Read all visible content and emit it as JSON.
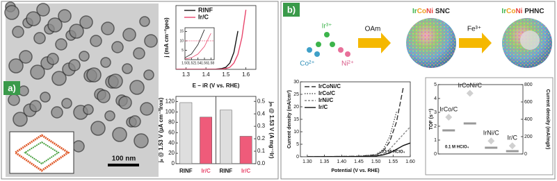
{
  "panel_labels": [
    "a)",
    "b)"
  ],
  "scale_bar": "100 nm",
  "scheme": {
    "ions": [
      "Ir³⁺",
      "Co²⁺",
      "Ni²⁺"
    ],
    "reagents": [
      "OAm",
      "Fe³⁺"
    ],
    "products": [
      {
        "parts": [
          "Ir",
          "Co",
          "Ni",
          " SNC"
        ]
      },
      {
        "parts": [
          "Ir",
          "Co",
          "Ni",
          " PHNC"
        ]
      }
    ],
    "part_colors": [
      "#3cb44b",
      "#f0a020",
      "#e8413c",
      "#222222"
    ]
  },
  "chart_data": [
    {
      "type": "line",
      "xlabel": "E − iR (V vs. RHE)",
      "ylabel": "j (mA cm⁻²geo)",
      "x": [
        1.25,
        1.4,
        1.45,
        1.48,
        1.5,
        1.52,
        1.54,
        1.56,
        1.58,
        1.6
      ],
      "series": [
        {
          "name": "RINF",
          "color": "#111111",
          "values": [
            0,
            0,
            0.1,
            0.4,
            1,
            3,
            8,
            18,
            null,
            null
          ]
        },
        {
          "name": "Ir/C",
          "color": "#e8456b",
          "values": [
            0,
            0,
            0,
            0.1,
            0.4,
            1,
            3,
            7,
            15,
            28
          ]
        }
      ],
      "xlim": [
        1.25,
        1.65
      ],
      "ylim": [
        0,
        30
      ],
      "xticks": [
        1.3,
        1.4,
        1.5,
        1.6
      ],
      "legend": "upper left"
    },
    {
      "type": "line",
      "x": [
        1.5,
        1.52,
        1.54,
        1.56,
        1.58
      ],
      "series": [
        {
          "color": "#111111",
          "values": [
            1,
            3,
            8,
            16,
            null
          ]
        },
        {
          "color": "#e8456b",
          "values": [
            0.4,
            1,
            3,
            7,
            14
          ]
        }
      ],
      "xlim": [
        1.5,
        1.59
      ],
      "ylim": [
        0,
        17
      ],
      "xticks": [
        {
          "value": 1.5,
          "label": "1.50"
        },
        1.52,
        1.54,
        1.56,
        1.58
      ],
      "yticks": [
        5,
        10,
        15
      ],
      "reference_y": 10,
      "reference_color": "#e8456b"
    },
    {
      "type": "bar",
      "categories": [
        "RINF",
        "Ir/C",
        "RINF",
        "Ir/C"
      ],
      "colors": [
        "#dedede",
        "#ef5b7a",
        "#dedede",
        "#ef5b7a"
      ],
      "label_colors": [
        "#111111",
        "#e8456b",
        "#111111",
        "#e8456b"
      ],
      "ylabel": "jₛ @ 1.53 V (µA cm⁻²Irox)",
      "y2label": "jₘ @ 1.53 V (A mg⁻¹Ir)",
      "series": [
        {
          "values": [
            118,
            90,
            null,
            null
          ]
        },
        {
          "values": [
            null,
            null,
            0.43,
            0.22
          ],
          "axis": "y2"
        }
      ],
      "ylim": [
        0,
        130
      ],
      "yticks": [
        0,
        20,
        40,
        60,
        80,
        100,
        120
      ],
      "y2lim": [
        0,
        0.54
      ],
      "y2ticks": [
        {
          "value": 0,
          "label": "0.0"
        },
        0.1,
        0.2,
        0.3,
        0.4,
        0.5
      ]
    },
    {
      "type": "line",
      "xlabel": "Potential (V vs. RHE)",
      "ylabel": "Current density (mA/cm²)",
      "annotation": "0.1 M HClO₄",
      "x": [
        1.3,
        1.45,
        1.5,
        1.52,
        1.54,
        1.56,
        1.58,
        1.6
      ],
      "series": [
        {
          "name": "IrCoNi/C",
          "color": "#333333",
          "style": "long-dash",
          "values": [
            0,
            0.2,
            0.8,
            2,
            6,
            14,
            28,
            null
          ]
        },
        {
          "name": "IrCo/C",
          "color": "#555555",
          "style": "dotted",
          "values": [
            0,
            0.2,
            0.9,
            2.6,
            8,
            18,
            null,
            null
          ]
        },
        {
          "name": "IrNi/C",
          "color": "#888888",
          "style": "dash",
          "values": [
            0,
            0.1,
            0.5,
            1,
            3,
            6,
            9,
            12
          ]
        },
        {
          "name": "Ir/C",
          "color": "#111111",
          "style": "solid",
          "values": [
            0,
            0.1,
            0.3,
            0.7,
            1.5,
            3,
            4.5,
            5.5
          ]
        }
      ],
      "xlim": [
        1.28,
        1.6
      ],
      "ylim": [
        0,
        30
      ],
      "xticks": [
        {
          "value": 1.3,
          "label": "1.30"
        },
        1.35,
        {
          "value": 1.4,
          "label": "1.40"
        },
        1.45,
        {
          "value": 1.5,
          "label": "1.50"
        },
        1.55,
        {
          "value": 1.6,
          "label": "1.60"
        }
      ],
      "yticks": [
        0,
        5,
        10,
        15,
        20,
        25,
        30
      ],
      "legend": "upper left"
    },
    {
      "type": "dot",
      "categories": [
        "IrCo/C",
        "IrCoNi/C",
        "IrNi/C",
        "Ir/C"
      ],
      "annotation": "0.1 M HClO₄",
      "ylabel": "TOF (s⁻¹)",
      "y2label": "Current density (mA/mgIr)",
      "series": [
        {
          "marker": "dash",
          "color": "#999999",
          "values": [
            1.7,
            2.2,
            0.45,
            0.2
          ]
        },
        {
          "marker": "diamond",
          "color": "#d0d0d0",
          "axis": "y2",
          "values": [
            424,
            700,
            150,
            94
          ]
        }
      ],
      "ylim": [
        0,
        5
      ],
      "yticks": [
        0,
        1,
        2,
        3,
        4,
        5
      ],
      "y2lim": [
        0,
        800
      ],
      "y2ticks": [
        0,
        200,
        400,
        600,
        800
      ]
    }
  ]
}
